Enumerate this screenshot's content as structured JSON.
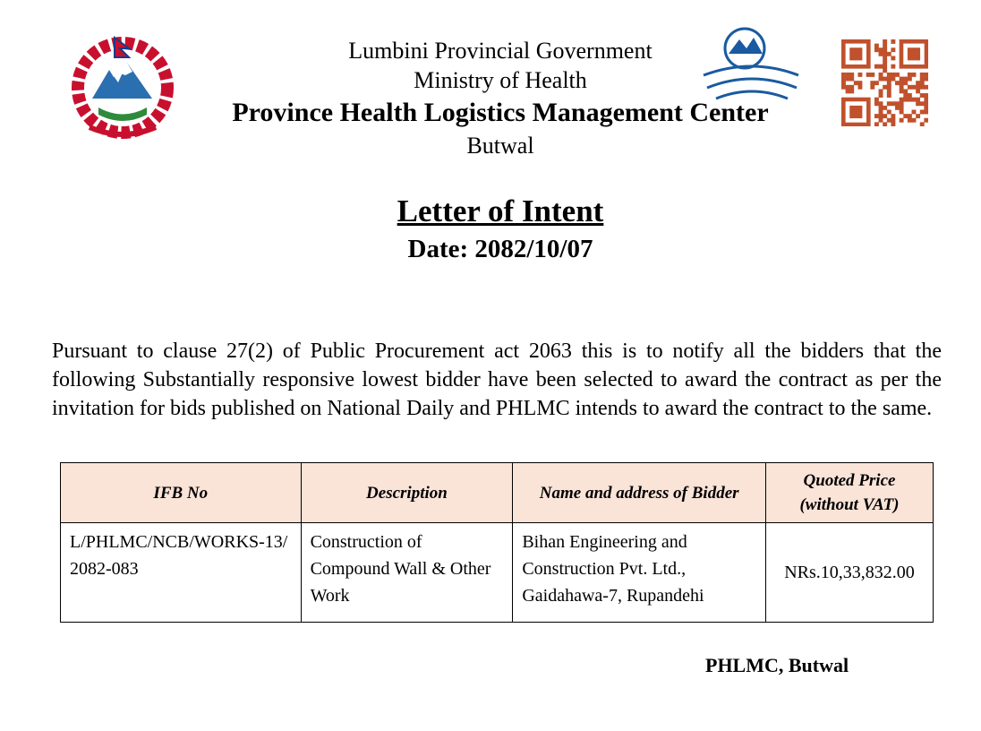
{
  "header": {
    "lines": [
      "Lumbini Provincial Government",
      "Ministry of Health"
    ],
    "center": "Province Health Logistics Management Center",
    "city": "Butwal"
  },
  "title": "Letter of Intent",
  "date": "Date: 2082/10/07",
  "body": "Pursuant to clause 27(2) of Public Procurement act 2063 this is to notify all the bidders that the following Substantially responsive lowest bidder have been selected to award the contract as per the invitation for bids published on National Daily and PHLMC intends to award the contract to the same.",
  "table": {
    "headers": [
      "IFB No",
      "Description",
      "Name and address of Bidder",
      "Quoted Price (without VAT)"
    ],
    "rows": [
      [
        "L/PHLMC/NCB/WORKS-13/2082-083",
        "Construction of Compound Wall & Other Work",
        "Bihan Engineering and Construction Pvt. Ltd., Gaidahawa-7, Rupandehi",
        "NRs.10,33,832.00"
      ]
    ]
  },
  "signature": "PHLMC, Butwal"
}
